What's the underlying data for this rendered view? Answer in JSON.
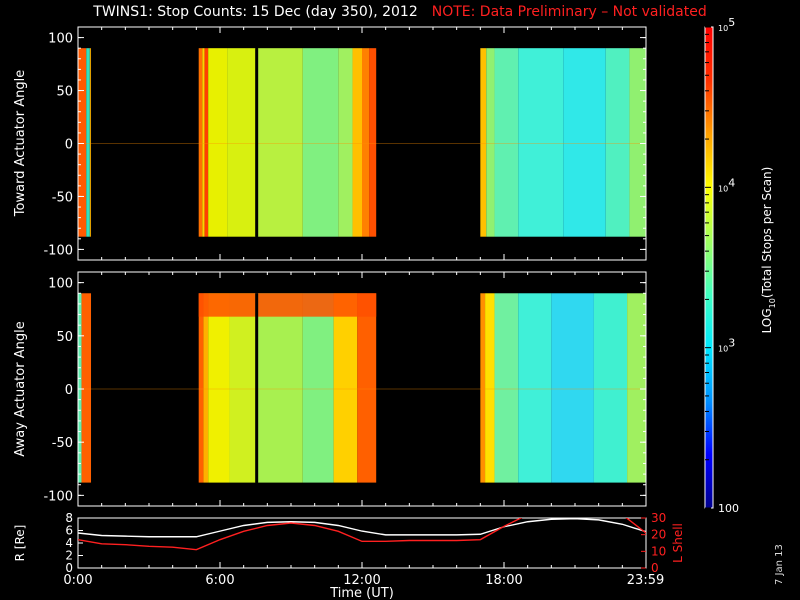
{
  "title": "TWINS1: Stop Counts: 15 Dec (day 350), 2012",
  "note": "NOTE: Data Preliminary – Not validated",
  "date_stamp": "7 Jan 13",
  "colors": {
    "background": "#000000",
    "axes": "#ffffff",
    "note": "#ff2020",
    "lshell": "#ff2020",
    "r_line": "#ffffff"
  },
  "chart_data": [
    {
      "type": "heatmap",
      "panel": "toward",
      "ylabel": "Toward Actuator Angle",
      "xlim": [
        0,
        24
      ],
      "ylim": [
        -110,
        110
      ],
      "yticks": [
        100,
        50,
        0,
        -50,
        -100
      ],
      "data_blocks_hours": [
        [
          0.0,
          0.55
        ],
        [
          5.1,
          12.6
        ],
        [
          17.0,
          24.0
        ]
      ],
      "data_angle_range": [
        -88,
        90
      ],
      "gap_line_hours": 7.55,
      "bands": [
        {
          "h0": 0.0,
          "h1": 0.35,
          "c": "#ff5a00"
        },
        {
          "h0": 0.35,
          "h1": 0.5,
          "c": "#30e0c0"
        },
        {
          "h0": 0.5,
          "h1": 0.55,
          "c": "#e0a000"
        },
        {
          "h0": 5.1,
          "h1": 5.25,
          "c": "#ff7000"
        },
        {
          "h0": 5.25,
          "h1": 5.35,
          "c": "#ffd000"
        },
        {
          "h0": 5.35,
          "h1": 5.5,
          "c": "#ff4000"
        },
        {
          "h0": 5.5,
          "h1": 6.3,
          "c": "#e8f000"
        },
        {
          "h0": 6.3,
          "h1": 7.5,
          "c": "#d8f010"
        },
        {
          "h0": 7.6,
          "h1": 9.5,
          "c": "#b8f040"
        },
        {
          "h0": 9.5,
          "h1": 11.0,
          "c": "#80f080"
        },
        {
          "h0": 11.0,
          "h1": 11.6,
          "c": "#a0f060"
        },
        {
          "h0": 11.6,
          "h1": 12.0,
          "c": "#ffc000"
        },
        {
          "h0": 12.0,
          "h1": 12.3,
          "c": "#ff8000"
        },
        {
          "h0": 12.3,
          "h1": 12.6,
          "c": "#ff5000"
        },
        {
          "h0": 17.0,
          "h1": 17.25,
          "c": "#ffc000"
        },
        {
          "h0": 17.25,
          "h1": 17.6,
          "c": "#90f070"
        },
        {
          "h0": 17.6,
          "h1": 18.6,
          "c": "#60f0b0"
        },
        {
          "h0": 18.6,
          "h1": 20.5,
          "c": "#40f0d8"
        },
        {
          "h0": 20.5,
          "h1": 22.3,
          "c": "#30e8e8"
        },
        {
          "h0": 22.3,
          "h1": 23.3,
          "c": "#50f0c0"
        },
        {
          "h0": 23.3,
          "h1": 24.0,
          "c": "#90f070"
        }
      ]
    },
    {
      "type": "heatmap",
      "panel": "away",
      "ylabel": "Away Actuator Angle",
      "xlim": [
        0,
        24
      ],
      "ylim": [
        -110,
        110
      ],
      "yticks": [
        100,
        50,
        0,
        -50,
        -100
      ],
      "data_blocks_hours": [
        [
          0.0,
          0.55
        ],
        [
          5.1,
          12.6
        ],
        [
          17.0,
          24.0
        ]
      ],
      "data_angle_range": [
        -88,
        90
      ],
      "gap_line_hours": 7.55,
      "bands": [
        {
          "h0": 0.0,
          "h1": 0.15,
          "c": "#60f0b0"
        },
        {
          "h0": 0.15,
          "h1": 0.55,
          "c": "#ff6000"
        },
        {
          "h0": 5.1,
          "h1": 5.3,
          "c": "#ff6000"
        },
        {
          "h0": 5.3,
          "h1": 5.5,
          "c": "#ffb000"
        },
        {
          "h0": 5.5,
          "h1": 6.4,
          "c": "#f0f000"
        },
        {
          "h0": 6.4,
          "h1": 7.5,
          "c": "#d0f020"
        },
        {
          "h0": 7.6,
          "h1": 9.5,
          "c": "#a8f050"
        },
        {
          "h0": 9.5,
          "h1": 10.8,
          "c": "#80f080"
        },
        {
          "h0": 10.8,
          "h1": 11.8,
          "c": "#ffd000"
        },
        {
          "h0": 11.8,
          "h1": 12.6,
          "c": "#ff6000"
        },
        {
          "h0": 17.0,
          "h1": 17.2,
          "c": "#ff9000"
        },
        {
          "h0": 17.2,
          "h1": 17.6,
          "c": "#ffe000"
        },
        {
          "h0": 17.6,
          "h1": 18.6,
          "c": "#70f0a0"
        },
        {
          "h0": 18.6,
          "h1": 20.0,
          "c": "#40f0d8"
        },
        {
          "h0": 20.0,
          "h1": 21.8,
          "c": "#30d8f0"
        },
        {
          "h0": 21.8,
          "h1": 23.2,
          "c": "#40f0d0"
        },
        {
          "h0": 23.2,
          "h1": 24.0,
          "c": "#a0f060"
        }
      ],
      "top_band": {
        "angle0": 68,
        "angle1": 90,
        "h0": 5.1,
        "h1": 12.6,
        "c": "#ff5000"
      }
    },
    {
      "type": "line",
      "panel": "orbit",
      "ylabel_left": "R [Re]",
      "ylabel_right": "L Shell",
      "xlabel": "Time (UT)",
      "xlim": [
        0,
        24
      ],
      "ylim_left": [
        0,
        8
      ],
      "yticks_left": [
        0,
        2,
        4,
        6,
        8
      ],
      "ylim_right": [
        0,
        30
      ],
      "yticks_right": [
        0,
        10,
        20,
        30
      ],
      "xticks": [
        {
          "h": 0,
          "label": "0:00"
        },
        {
          "h": 6,
          "label": "6:00"
        },
        {
          "h": 12,
          "label": "12:00"
        },
        {
          "h": 18,
          "label": "18:00"
        },
        {
          "h": 23.98,
          "label": "23:59"
        }
      ],
      "series": [
        {
          "color": "#ffffff",
          "x": [
            0,
            1,
            2,
            3,
            4,
            5,
            6,
            7,
            8,
            9,
            10,
            11,
            12,
            13,
            14,
            15,
            16,
            17,
            18,
            19,
            20,
            21,
            22,
            23,
            24
          ],
          "y": [
            5.6,
            5.2,
            5.1,
            5.0,
            5.0,
            5.0,
            5.9,
            6.8,
            7.3,
            7.4,
            7.3,
            6.8,
            5.9,
            5.3,
            5.3,
            5.3,
            5.3,
            5.4,
            6.6,
            7.4,
            7.8,
            7.9,
            7.7,
            7.0,
            5.8
          ]
        },
        {
          "color": "#ff2020",
          "axis": "right",
          "x": [
            0,
            1,
            2,
            3,
            4,
            5,
            6,
            7,
            8,
            9,
            10,
            11,
            12,
            13,
            14,
            15,
            16,
            17,
            18,
            19,
            20,
            21,
            22,
            23,
            24
          ],
          "y": [
            17,
            14.5,
            14,
            13,
            12.5,
            11,
            17,
            22,
            25.5,
            27,
            25.5,
            22,
            16,
            16,
            16.5,
            16.5,
            16.5,
            17,
            25,
            32,
            32,
            32,
            32,
            32,
            21
          ]
        }
      ]
    },
    {
      "type": "colorbar",
      "label": "LOG10(Total Stops per Scan)",
      "label_main": "LOG",
      "label_sub": "10",
      "label_rest": "(Total Stops per Scan)",
      "ticks": [
        {
          "value": 100,
          "label": "100"
        },
        {
          "value": 1000,
          "label_base": "10",
          "label_exp": "3"
        },
        {
          "value": 10000,
          "label_base": "10",
          "label_exp": "4"
        },
        {
          "value": 100000,
          "label_base": "10",
          "label_exp": "5"
        }
      ],
      "range": [
        100,
        100000
      ],
      "colormap": [
        "#00008c",
        "#0000ff",
        "#0090ff",
        "#00e8ff",
        "#40ffc0",
        "#a0ff60",
        "#ffff00",
        "#ffa000",
        "#ff3000",
        "#ff0000"
      ]
    }
  ]
}
